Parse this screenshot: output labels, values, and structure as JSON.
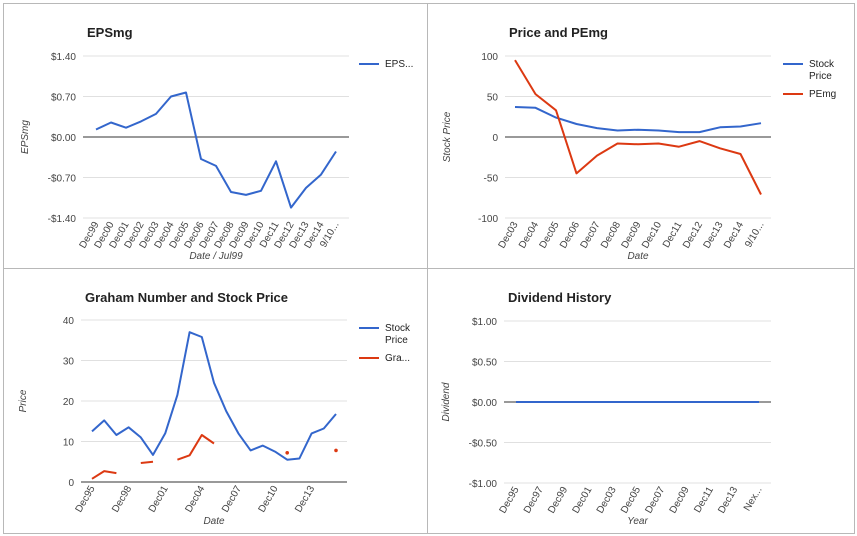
{
  "colors": {
    "blue": "#3366cc",
    "red": "#dc3912"
  },
  "chart_data": [
    {
      "type": "line",
      "title": "EPSmg",
      "xlabel": "Date / Jul99",
      "ylabel": "EPSmg",
      "ylim": [
        -1.4,
        1.4
      ],
      "yticks": [
        1.4,
        0.7,
        0.0,
        -0.7,
        -1.4
      ],
      "ytick_labels": [
        "$1.40",
        "$0.70",
        "$0.00",
        "-$0.70",
        "-$1.40"
      ],
      "categories": [
        "Dec99",
        "Dec00",
        "Dec01",
        "Dec02",
        "Dec03",
        "Dec04",
        "Dec05",
        "Dec06",
        "Dec07",
        "Dec08",
        "Dec09",
        "Dec10",
        "Dec11",
        "Dec12",
        "Dec13",
        "Dec14",
        "9/10..."
      ],
      "x": [
        0,
        1,
        2,
        3,
        4,
        5,
        6,
        7,
        8,
        9,
        10,
        11,
        12,
        13,
        14,
        15,
        16
      ],
      "series": [
        {
          "name": "EPS...",
          "color": "#3366cc",
          "values": [
            0.13,
            0.25,
            0.16,
            0.27,
            0.4,
            0.7,
            0.77,
            -0.38,
            -0.5,
            -0.95,
            -1.0,
            -0.93,
            -0.42,
            -1.22,
            -0.88,
            -0.65,
            -0.25
          ]
        }
      ],
      "grid": true,
      "legend": "right"
    },
    {
      "type": "line",
      "title": "Price and PEmg",
      "xlabel": "Date",
      "ylabel": "Stock Price",
      "ylim": [
        -100,
        100
      ],
      "yticks": [
        100,
        50,
        0,
        -50,
        -100
      ],
      "ytick_labels": [
        "100",
        "50",
        "0",
        "-50",
        "-100"
      ],
      "categories": [
        "Dec03",
        "Dec04",
        "Dec05",
        "Dec06",
        "Dec07",
        "Dec08",
        "Dec09",
        "Dec10",
        "Dec11",
        "Dec12",
        "Dec13",
        "Dec14",
        "9/10..."
      ],
      "x": [
        0,
        1,
        2,
        3,
        4,
        5,
        6,
        7,
        8,
        9,
        10,
        11,
        12
      ],
      "series": [
        {
          "name": "Stock Price",
          "color": "#3366cc",
          "values": [
            37,
            36,
            24,
            16,
            11,
            8,
            9,
            8,
            6,
            6,
            12,
            13,
            17
          ]
        },
        {
          "name": "PEmg",
          "color": "#dc3912",
          "values": [
            95,
            53,
            33,
            -45,
            -23,
            -8,
            -9,
            -8,
            -12,
            -5,
            -14,
            -21,
            -71
          ]
        }
      ],
      "grid": true,
      "legend": "right"
    },
    {
      "type": "line",
      "title": "Graham Number and Stock Price",
      "xlabel": "Date",
      "ylabel": "Price",
      "ylim": [
        0,
        40
      ],
      "yticks": [
        40,
        30,
        20,
        10,
        0
      ],
      "ytick_labels": [
        "40",
        "30",
        "20",
        "10",
        "0"
      ],
      "categories": [
        "Dec95",
        "Dec98",
        "Dec01",
        "Dec04",
        "Dec07",
        "Dec10",
        "Dec13"
      ],
      "category_x": [
        0,
        3,
        6,
        9,
        12,
        15,
        18
      ],
      "x": [
        0,
        1,
        2,
        3,
        4,
        5,
        6,
        7,
        8,
        9,
        10,
        11,
        12,
        13,
        14,
        15,
        16,
        17,
        18,
        19,
        20
      ],
      "series": [
        {
          "name": "Stock Price",
          "color": "#3366cc",
          "values": [
            12.5,
            15.2,
            11.6,
            13.5,
            11.0,
            6.7,
            12.0,
            21.5,
            37.0,
            35.8,
            24.5,
            17.5,
            12.0,
            7.8,
            9.0,
            7.5,
            5.5,
            5.8,
            12.0,
            13.2,
            16.8
          ]
        },
        {
          "name": "Gra...",
          "color": "#dc3912",
          "values": [
            0.8,
            2.7,
            2.2,
            null,
            4.7,
            5.0,
            null,
            5.5,
            6.6,
            11.6,
            9.5,
            null,
            null,
            null,
            null,
            null,
            7.2,
            null,
            null,
            null,
            7.8
          ]
        }
      ],
      "grid": true,
      "legend": "right"
    },
    {
      "type": "line",
      "title": "Dividend History",
      "xlabel": "Year",
      "ylabel": "Dividend",
      "ylim": [
        -1.0,
        1.0
      ],
      "yticks": [
        1.0,
        0.5,
        0.0,
        -0.5,
        -1.0
      ],
      "ytick_labels": [
        "$1.00",
        "$0.50",
        "$0.00",
        "-$0.50",
        "-$1.00"
      ],
      "categories": [
        "Dec95",
        "Dec97",
        "Dec99",
        "Dec01",
        "Dec03",
        "Dec05",
        "Dec07",
        "Dec09",
        "Dec11",
        "Dec13",
        "Nex..."
      ],
      "x": [
        0,
        1,
        2,
        3,
        4,
        5,
        6,
        7,
        8,
        9,
        10
      ],
      "series": [
        {
          "name": "Dividend",
          "color": "#3366cc",
          "values": [
            0,
            0,
            0,
            0,
            0,
            0,
            0,
            0,
            0,
            0,
            0
          ]
        }
      ],
      "grid": true,
      "legend": "none"
    }
  ]
}
